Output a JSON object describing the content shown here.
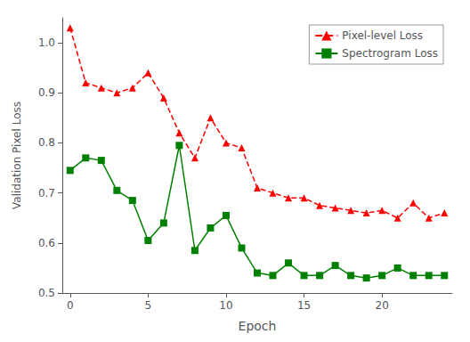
{
  "chart_data": {
    "type": "line",
    "xlabel": "Epoch",
    "ylabel": "Validation Pixel Loss",
    "xlim": [
      -0.5,
      24.5
    ],
    "xticks": [
      0,
      5,
      10,
      15,
      20
    ],
    "ylim": [
      0.5,
      1.05
    ],
    "yticks": [
      0.5,
      0.6,
      0.7,
      0.8,
      0.9,
      {
        "value": 1,
        "label": "1.0"
      }
    ],
    "grid": false,
    "legend": "upper right",
    "series": [
      {
        "name": "Pixel-level Loss",
        "color": "#ff0000",
        "marker": "triangle",
        "line_style": "dashed",
        "x": [
          0,
          1,
          2,
          3,
          4,
          5,
          6,
          7,
          8,
          9,
          10,
          11,
          12,
          13,
          14,
          15,
          16,
          17,
          18,
          19,
          20,
          21,
          22,
          23,
          24
        ],
        "values": [
          1.03,
          0.92,
          0.91,
          0.9,
          0.91,
          0.94,
          0.89,
          0.82,
          0.77,
          0.85,
          0.8,
          0.79,
          0.71,
          0.7,
          0.69,
          0.69,
          0.675,
          0.67,
          0.665,
          0.66,
          0.665,
          0.65,
          0.68,
          0.65,
          0.66
        ]
      },
      {
        "name": "Spectrogram Loss",
        "color": "#008000",
        "marker": "square",
        "line_style": "solid",
        "x": [
          0,
          1,
          2,
          3,
          4,
          5,
          6,
          7,
          8,
          9,
          10,
          11,
          12,
          13,
          14,
          15,
          16,
          17,
          18,
          19,
          20,
          21,
          22,
          23,
          24
        ],
        "values": [
          0.745,
          0.77,
          0.765,
          0.705,
          0.685,
          0.605,
          0.64,
          0.795,
          0.585,
          0.63,
          0.655,
          0.59,
          0.54,
          0.535,
          0.56,
          0.535,
          0.535,
          0.555,
          0.535,
          0.53,
          0.535,
          0.55,
          0.535,
          0.535,
          0.535
        ]
      }
    ]
  }
}
